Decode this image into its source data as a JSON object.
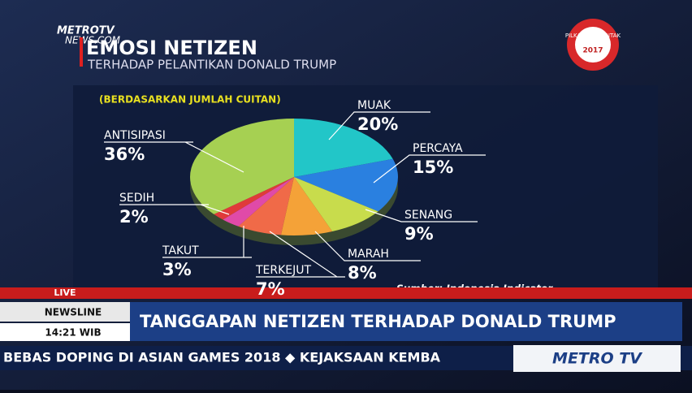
{
  "chart_data": {
    "type": "pie",
    "title": "EMOSI NETIZEN",
    "subtitle": "TERHADAP PELANTIKAN DONALD TRUMP",
    "note": "(BERDASARKAN JUMLAH CUITAN)",
    "source": "Sumber:  Indonesia Indicator",
    "categories": [
      "MUAK",
      "PERCAYA",
      "SENANG",
      "MARAH",
      "TERKEJUT",
      "TAKUT",
      "SEDIH",
      "ANTISIPASI"
    ],
    "values": [
      20,
      15,
      9,
      8,
      7,
      3,
      2,
      36
    ],
    "value_labels": [
      "20%",
      "15%",
      "9%",
      "8%",
      "7%",
      "3%",
      "2%",
      "36%"
    ],
    "colors": [
      "#22c6c8",
      "#2a80e0",
      "#c8dc4c",
      "#f4a238",
      "#f06a48",
      "#e04aa8",
      "#e03a3a",
      "#a6d052"
    ]
  },
  "broadcast": {
    "logo": [
      "METROTV",
      "NEWS.COM"
    ],
    "badge": [
      "PILKADA SERENTAK",
      "2017"
    ],
    "live": "LIVE",
    "newsline": "NEWSLINE",
    "time": "14:21 WIB",
    "headline": "TANGGAPAN NETIZEN TERHADAP DONALD TRUMP",
    "ticker": "BEBAS DOPING DI ASIAN GAMES 2018  ◆  KEJAKSAAN KEMBA",
    "channel": "METRO TV"
  }
}
